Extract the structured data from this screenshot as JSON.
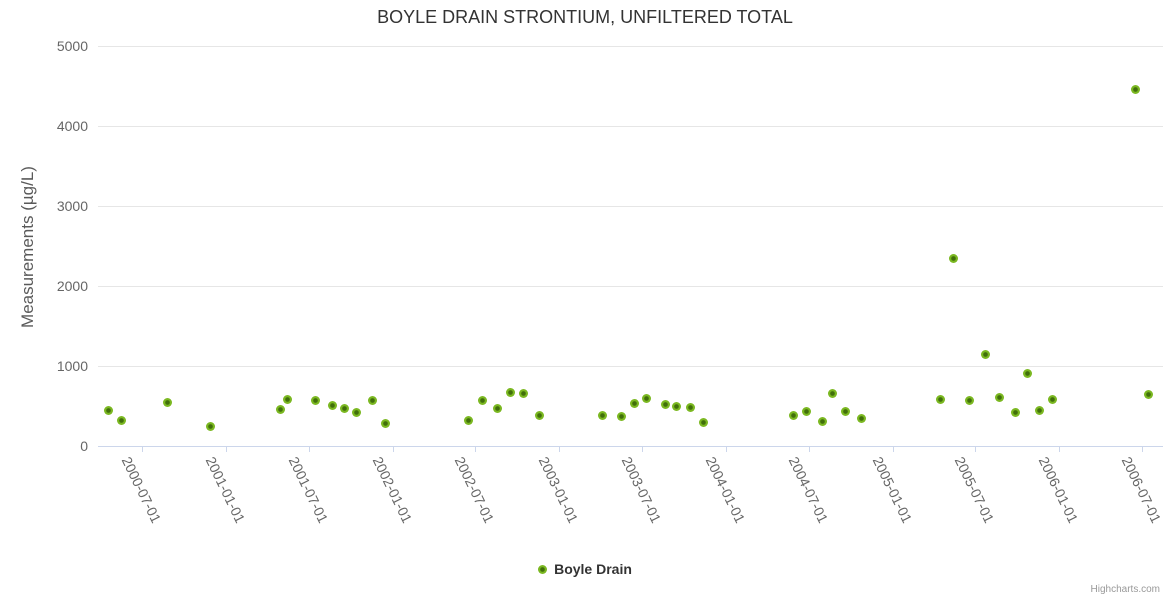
{
  "page": {
    "credits": "Highcharts.com"
  },
  "chart_data": {
    "type": "scatter",
    "title": "BOYLE DRAIN STRONTIUM, UNFILTERED TOTAL",
    "xlabel": "",
    "ylabel": "Measurements (µg/L)",
    "ylim": [
      0,
      5000
    ],
    "yticks": [
      0,
      1000,
      2000,
      3000,
      4000,
      5000
    ],
    "xticks": [
      "2000-07-01",
      "2001-01-01",
      "2001-07-01",
      "2002-01-01",
      "2002-07-01",
      "2003-01-01",
      "2003-07-01",
      "2004-01-01",
      "2004-07-01",
      "2005-01-01",
      "2005-07-01",
      "2006-01-01",
      "2006-07-01"
    ],
    "grid": "horizontal-only",
    "legend_position": "bottom-center",
    "colors": {
      "title": "#333333",
      "axis_label": "#666666",
      "grid": "#e6e6e6",
      "axis_line": "#ccd6eb",
      "marker_outer": "#7bb821",
      "marker_inner": "#416f0b",
      "legend_text": "#333333",
      "credits": "#999999"
    },
    "series": [
      {
        "name": "Boyle Drain",
        "points": [
          [
            "2000-04-18",
            440
          ],
          [
            "2000-05-18",
            320
          ],
          [
            "2000-08-25",
            540
          ],
          [
            "2000-11-29",
            250
          ],
          [
            "2001-04-30",
            455
          ],
          [
            "2001-05-16",
            585
          ],
          [
            "2001-07-16",
            575
          ],
          [
            "2001-08-22",
            505
          ],
          [
            "2001-09-18",
            465
          ],
          [
            "2001-10-15",
            425
          ],
          [
            "2001-11-19",
            575
          ],
          [
            "2001-12-17",
            280
          ],
          [
            "2002-06-16",
            315
          ],
          [
            "2002-07-16",
            570
          ],
          [
            "2002-08-19",
            465
          ],
          [
            "2002-09-17",
            675
          ],
          [
            "2002-10-14",
            660
          ],
          [
            "2002-11-20",
            385
          ],
          [
            "2003-04-06",
            385
          ],
          [
            "2003-05-18",
            375
          ],
          [
            "2003-06-16",
            530
          ],
          [
            "2003-07-11",
            590
          ],
          [
            "2003-08-22",
            525
          ],
          [
            "2003-09-15",
            490
          ],
          [
            "2003-10-16",
            485
          ],
          [
            "2003-11-14",
            290
          ],
          [
            "2004-05-28",
            385
          ],
          [
            "2004-06-26",
            435
          ],
          [
            "2004-07-31",
            310
          ],
          [
            "2004-08-22",
            660
          ],
          [
            "2004-09-19",
            430
          ],
          [
            "2004-10-24",
            340
          ],
          [
            "2005-04-16",
            585
          ],
          [
            "2005-05-15",
            2350
          ],
          [
            "2005-06-18",
            570
          ],
          [
            "2005-07-23",
            1150
          ],
          [
            "2005-08-22",
            610
          ],
          [
            "2005-09-26",
            415
          ],
          [
            "2005-10-23",
            910
          ],
          [
            "2005-11-18",
            445
          ],
          [
            "2005-12-17",
            585
          ],
          [
            "2006-06-17",
            4460
          ],
          [
            "2006-07-16",
            650
          ]
        ]
      }
    ]
  }
}
